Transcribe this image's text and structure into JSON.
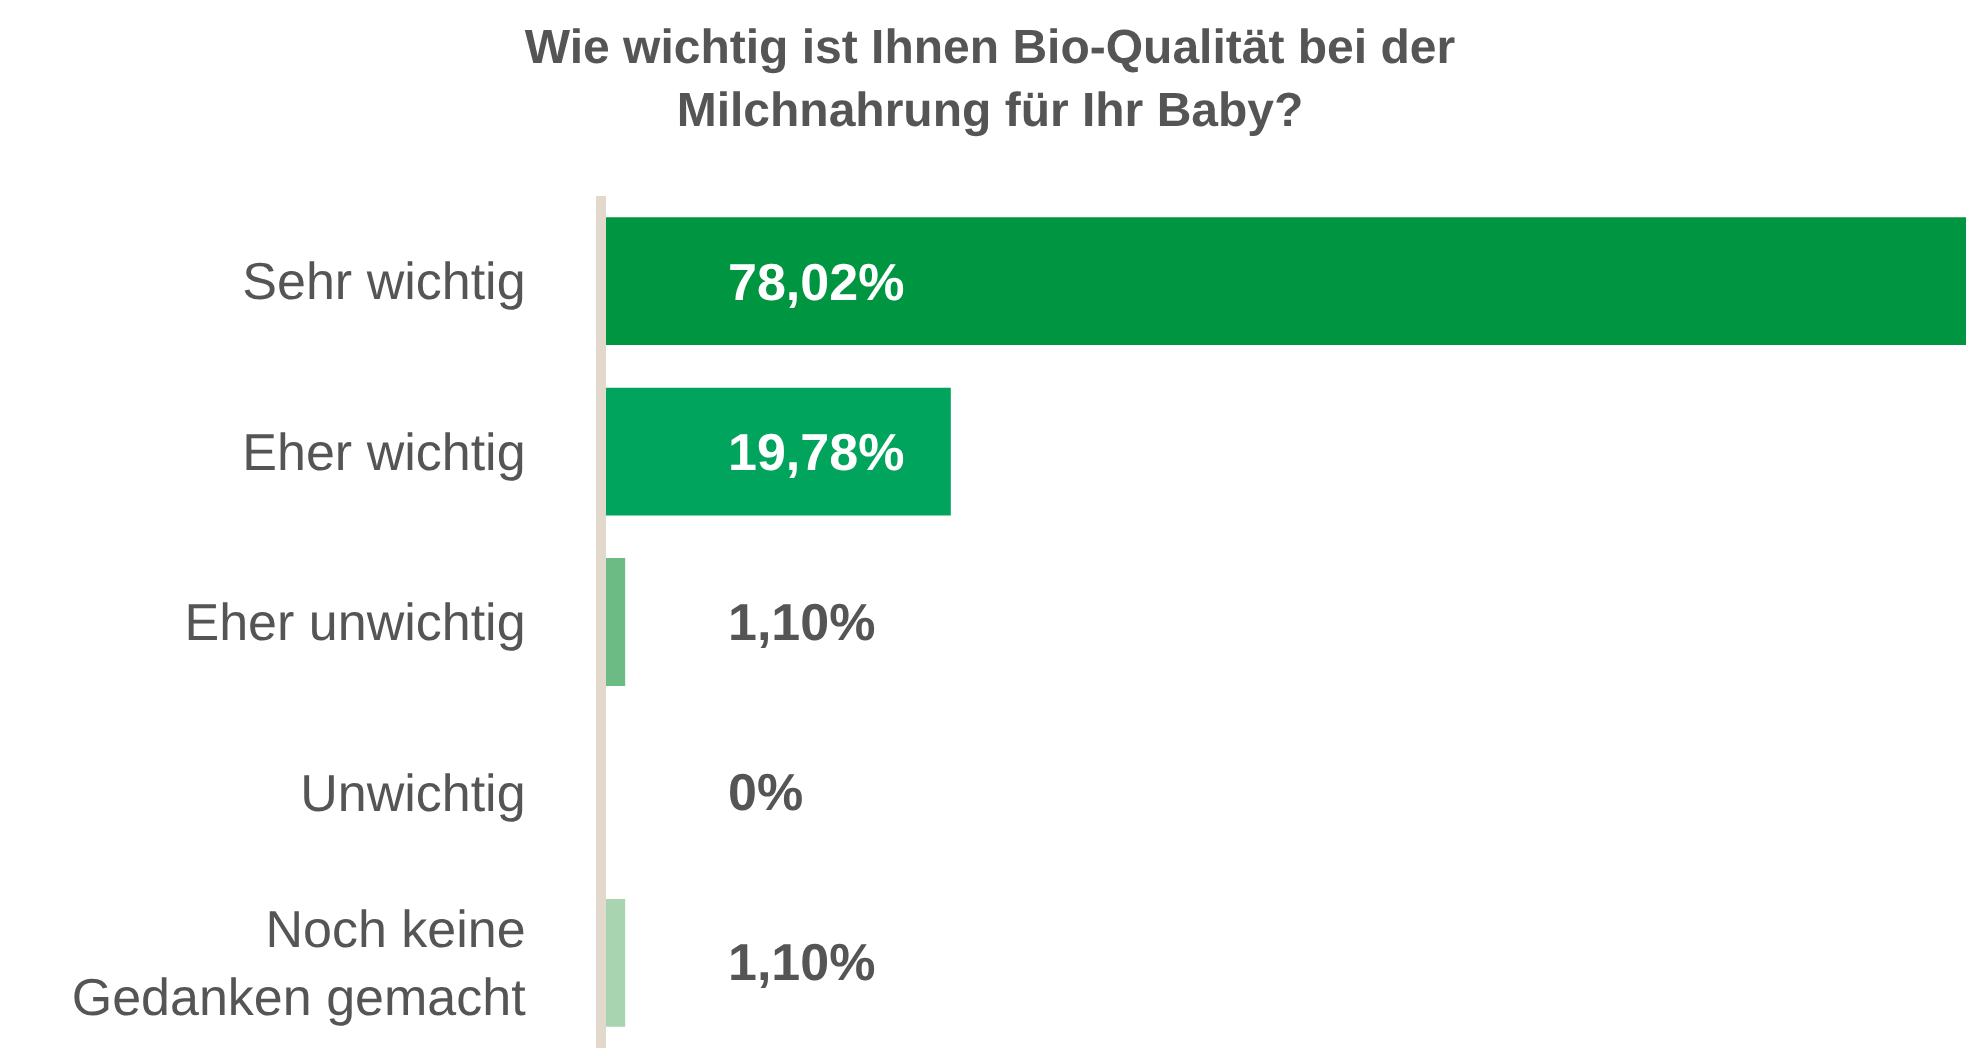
{
  "chart_data": {
    "type": "bar",
    "orientation": "horizontal",
    "title": "Wie wichtig ist Ihnen Bio-Qualität bei der\nMilchnahrung für Ihr Baby?",
    "categories": [
      "Sehr wichtig",
      "Eher wichtig",
      "Eher unwichtig",
      "Unwichtig",
      "Noch keine\nGedanken gemacht"
    ],
    "values": [
      78.02,
      19.78,
      1.1,
      0,
      1.1
    ],
    "colors": [
      "#009540",
      "#00a45c",
      "#6dbb84",
      "#8fcc9e",
      "#a8d5b0"
    ],
    "value_labels": [
      "78,02%",
      "19,78%",
      "1,10%",
      "0%",
      "1,10%"
    ],
    "xlim": [
      0,
      78.02
    ],
    "tick_labels": "y",
    "grid": false,
    "legend": false
  }
}
